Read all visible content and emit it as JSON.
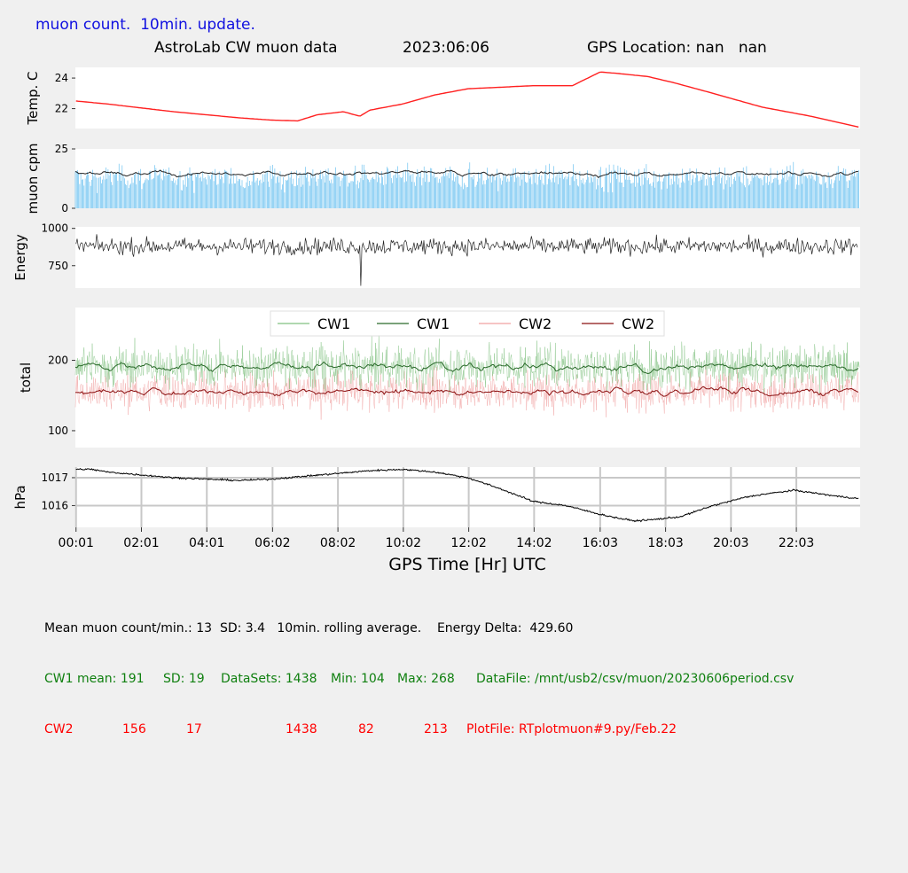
{
  "header": {
    "status": "muon count.  10min. update.",
    "title": "AstroLab CW muon data",
    "date": "2023:06:06",
    "gps_location": "GPS Location: nan   nan"
  },
  "colors": {
    "temperature": "#ff2020",
    "cpm_bars": "#55b8ee",
    "cpm_avg": "#222222",
    "energy": "#222222",
    "cw1_raw": "#80c080",
    "cw1_avg": "#2a6a2a",
    "cw2_raw": "#f0a0a0",
    "cw2_avg": "#8b1010",
    "pressure": "#000000",
    "grid": "#c8c8c8",
    "footer_black": "#000000",
    "footer_green": "#108010",
    "footer_red": "#ff0000",
    "header_blue": "#1010e0"
  },
  "chart_data": [
    {
      "id": "temperature",
      "type": "line",
      "ylabel": "Temp. C",
      "yticks": [
        22,
        24
      ],
      "ylim": [
        20.7,
        24.7
      ],
      "x": [
        0.02,
        1.0,
        2.0,
        3.0,
        4.0,
        5.0,
        6.0,
        6.8,
        7.4,
        8.2,
        8.7,
        9.0,
        10.0,
        11.0,
        12.0,
        13.0,
        14.0,
        15.2,
        16.05,
        16.6,
        17.5,
        18.3,
        19.5,
        21.0,
        22.5,
        23.95
      ],
      "values": [
        22.5,
        22.3,
        22.05,
        21.8,
        21.6,
        21.4,
        21.25,
        21.2,
        21.6,
        21.8,
        21.5,
        21.9,
        22.3,
        22.9,
        23.3,
        23.4,
        23.5,
        23.5,
        24.4,
        24.3,
        24.1,
        23.7,
        23.0,
        22.1,
        21.5,
        20.8
      ]
    },
    {
      "id": "muon-cpm",
      "type": "bar",
      "ylabel": "muon cpm",
      "yticks": [
        0,
        25
      ],
      "ylim": [
        0,
        25
      ],
      "mean": 13,
      "sd": 3.4
    },
    {
      "id": "energy",
      "type": "line",
      "ylabel": "Energy",
      "yticks": [
        750,
        1000
      ],
      "ylim": [
        600,
        1010
      ],
      "mean": 880,
      "delta": 429.6
    },
    {
      "id": "total",
      "type": "line",
      "ylabel": "total",
      "yticks": [
        100,
        200
      ],
      "ylim": [
        76,
        275
      ],
      "legend": [
        "CW1",
        "CW1",
        "CW2",
        "CW2"
      ],
      "series": [
        {
          "name": "CW1",
          "kind": "raw",
          "mean": 191,
          "sd": 19,
          "min": 104,
          "max": 268
        },
        {
          "name": "CW1",
          "kind": "avg",
          "mean": 191
        },
        {
          "name": "CW2",
          "kind": "raw",
          "mean": 156,
          "sd": 17,
          "min": 82,
          "max": 213
        },
        {
          "name": "CW2",
          "kind": "avg",
          "mean": 156
        }
      ]
    },
    {
      "id": "pressure",
      "type": "line",
      "ylabel": "hPa",
      "yticks": [
        1016,
        1017
      ],
      "ylim": [
        1015.22,
        1017.38
      ],
      "x": [
        0.02,
        0.5,
        1.0,
        2.0,
        3.0,
        4.0,
        5.0,
        6.0,
        7.0,
        8.0,
        9.0,
        10.0,
        11.0,
        12.0,
        13.0,
        14.0,
        15.0,
        16.0,
        16.6,
        17.1,
        17.7,
        18.5,
        19.5,
        20.5,
        21.0,
        22.0,
        22.6,
        23.2,
        23.95
      ],
      "values": [
        1017.3,
        1017.3,
        1017.2,
        1017.1,
        1017.0,
        1016.95,
        1016.9,
        1016.95,
        1017.05,
        1017.15,
        1017.25,
        1017.3,
        1017.2,
        1017.0,
        1016.6,
        1016.15,
        1016.0,
        1015.7,
        1015.55,
        1015.45,
        1015.5,
        1015.6,
        1016.0,
        1016.3,
        1016.4,
        1016.55,
        1016.45,
        1016.35,
        1016.25
      ]
    }
  ],
  "xaxis": {
    "label": "GPS Time  [Hr] UTC",
    "range": [
      0,
      24
    ],
    "ticks": [
      {
        "value": 0.02,
        "label": "00:01"
      },
      {
        "value": 2.02,
        "label": "02:01"
      },
      {
        "value": 4.02,
        "label": "04:01"
      },
      {
        "value": 6.03,
        "label": "06:02"
      },
      {
        "value": 8.03,
        "label": "08:02"
      },
      {
        "value": 10.03,
        "label": "10:02"
      },
      {
        "value": 12.03,
        "label": "12:02"
      },
      {
        "value": 14.03,
        "label": "14:02"
      },
      {
        "value": 16.05,
        "label": "16:03"
      },
      {
        "value": 18.05,
        "label": "18:03"
      },
      {
        "value": 20.05,
        "label": "20:03"
      },
      {
        "value": 22.05,
        "label": "22:03"
      }
    ]
  },
  "footer": {
    "line1": "Mean muon count/min.: 13  SD: 3.4   10min. rolling average.    Energy Delta:  429.60",
    "cw1": {
      "label": "CW1 mean: 191",
      "sd": "SD: 19",
      "datasets": "DataSets: 1438",
      "min": "Min: 104",
      "max": "Max: 268",
      "file": "DataFile: /mnt/usb2/csv/muon/20230606period.csv"
    },
    "cw2": {
      "label": "CW2",
      "mean": "156",
      "sd": "17",
      "datasets": "1438",
      "min": "82",
      "max": "213",
      "file": "PlotFile: RTplotmuon#9.py/Feb.22"
    }
  }
}
